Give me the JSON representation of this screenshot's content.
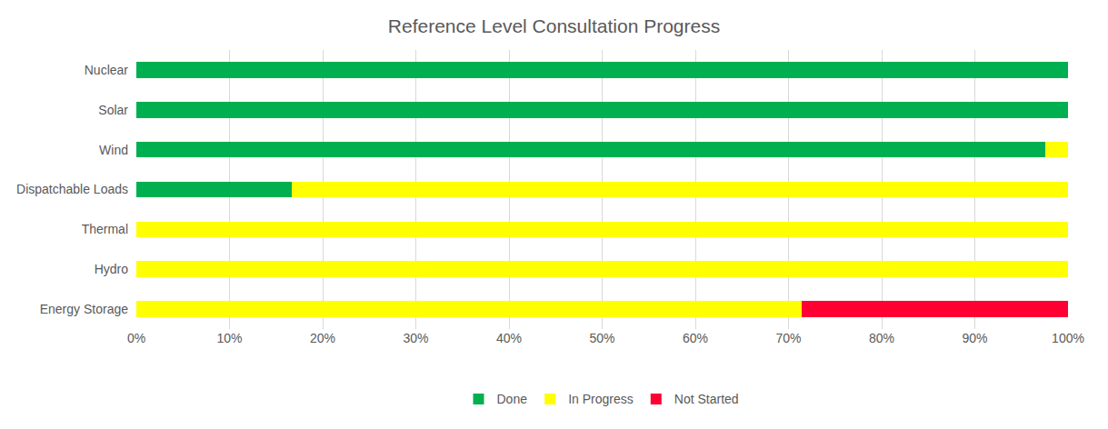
{
  "chart_data": {
    "type": "bar",
    "title": "Reference Level Consultation Progress",
    "orientation": "horizontal",
    "stacked": true,
    "categories": [
      "Nuclear",
      "Solar",
      "Wind",
      "Dispatchable Loads",
      "Thermal",
      "Hydro",
      "Energy Storage"
    ],
    "series": [
      {
        "name": "Done",
        "color": "#00b050",
        "values": [
          100,
          100,
          97.6,
          16.7,
          0,
          0,
          0
        ]
      },
      {
        "name": "In Progress",
        "color": "#ffff00",
        "values": [
          0,
          0,
          2.4,
          83.3,
          100,
          100,
          71.4
        ]
      },
      {
        "name": "Not Started",
        "color": "#ff0033",
        "values": [
          0,
          0,
          0,
          0,
          0,
          0,
          28.6
        ]
      }
    ],
    "xlim": [
      0,
      100
    ],
    "xticks": [
      {
        "value": 0,
        "label": "0%"
      },
      {
        "value": 10,
        "label": "10%"
      },
      {
        "value": 20,
        "label": "20%"
      },
      {
        "value": 30,
        "label": "30%"
      },
      {
        "value": 40,
        "label": "40%"
      },
      {
        "value": 50,
        "label": "50%"
      },
      {
        "value": 60,
        "label": "60%"
      },
      {
        "value": 70,
        "label": "70%"
      },
      {
        "value": 80,
        "label": "80%"
      },
      {
        "value": 90,
        "label": "90%"
      },
      {
        "value": 100,
        "label": "100%"
      }
    ],
    "grid": true,
    "legend": "bottom"
  }
}
